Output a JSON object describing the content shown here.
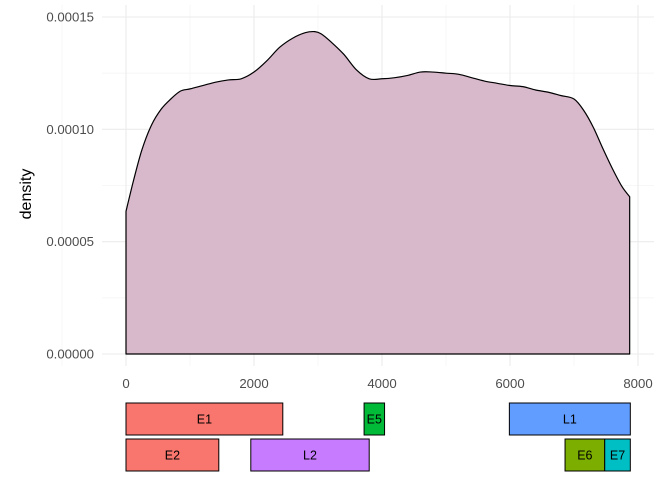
{
  "chart_data": {
    "type": "area",
    "title": "",
    "xlabel": "",
    "ylabel": "density",
    "xlim": [
      -200,
      8050
    ],
    "ylim": [
      0,
      0.00015
    ],
    "x_ticks": [
      {
        "value": 0,
        "label": "0"
      },
      {
        "value": 2000,
        "label": "2000"
      },
      {
        "value": 4000,
        "label": "4000"
      },
      {
        "value": 6000,
        "label": "6000"
      },
      {
        "value": 8000,
        "label": "8000"
      }
    ],
    "y_ticks": [
      {
        "value": 0,
        "label": "0.00000"
      },
      {
        "value": 5e-05,
        "label": "0.00005"
      },
      {
        "value": 0.0001,
        "label": "0.00010"
      },
      {
        "value": 0.00015,
        "label": "0.00015"
      }
    ],
    "grid": true,
    "series": [
      {
        "fill": "#d8b8cb",
        "stroke": "#000000",
        "x": [
          0,
          120,
          250,
          400,
          550,
          700,
          850,
          1000,
          1200,
          1400,
          1600,
          1800,
          2000,
          2200,
          2400,
          2600,
          2800,
          2950,
          3050,
          3200,
          3400,
          3600,
          3800,
          4000,
          4200,
          4400,
          4600,
          4800,
          5000,
          5200,
          5400,
          5600,
          5800,
          6000,
          6200,
          6400,
          6600,
          6800,
          7000,
          7150,
          7300,
          7450,
          7600,
          7750,
          7870
        ],
        "y": [
          6.35e-05,
          7.75e-05,
          9.1e-05,
          0.000102,
          0.000109,
          0.0001135,
          0.000117,
          0.000118,
          0.0001195,
          0.000121,
          0.000122,
          0.0001225,
          0.0001255,
          0.0001305,
          0.0001365,
          0.0001405,
          0.000143,
          0.0001435,
          0.0001425,
          0.000139,
          0.0001335,
          0.0001265,
          0.0001225,
          0.0001225,
          0.000123,
          0.000124,
          0.0001255,
          0.0001255,
          0.000125,
          0.0001245,
          0.000123,
          0.0001215,
          0.0001205,
          0.0001195,
          0.000119,
          0.0001175,
          0.0001165,
          0.000115,
          0.0001135,
          0.0001085,
          0.000101,
          9.15e-05,
          8.25e-05,
          7.45e-05,
          7e-05
        ]
      }
    ],
    "genes": [
      {
        "label": "E1",
        "start": 0,
        "end": 2450,
        "row": 0,
        "color": "#f8766d"
      },
      {
        "label": "E5",
        "start": 3720,
        "end": 4040,
        "row": 0,
        "color": "#00ba38"
      },
      {
        "label": "L1",
        "start": 5990,
        "end": 7880,
        "row": 0,
        "color": "#619cff"
      },
      {
        "label": "E2",
        "start": 0,
        "end": 1450,
        "row": 1,
        "color": "#f8766d"
      },
      {
        "label": "L2",
        "start": 1950,
        "end": 3800,
        "row": 1,
        "color": "#c77cff"
      },
      {
        "label": "E6",
        "start": 6860,
        "end": 7480,
        "row": 1,
        "color": "#7cae00"
      },
      {
        "label": "E7",
        "start": 7480,
        "end": 7880,
        "row": 1,
        "color": "#00bfc4"
      }
    ]
  }
}
